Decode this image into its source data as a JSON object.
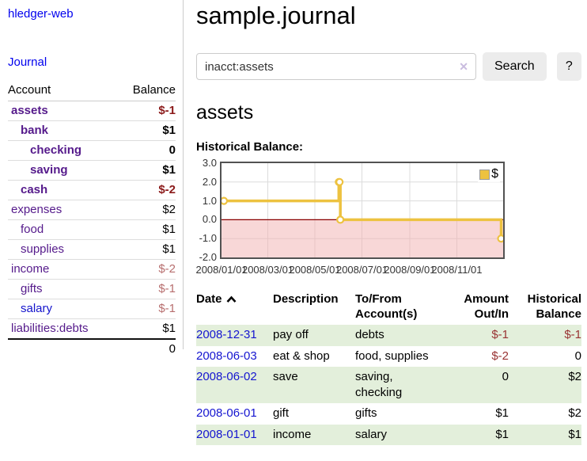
{
  "colors": {
    "accent_purple": "#551a8b",
    "link_blue": "#1414cc",
    "date_link_blue": "#1515d0",
    "negative_strong": "#8b1a1a",
    "negative_soft": "#b76e6e",
    "table_negative": "#993333",
    "row_highlight": "#e3efdb",
    "chart_line_gold": "#edc240",
    "chart_negative_area": "#f2b0b0",
    "chart_zero_line": "#8b0000"
  },
  "sidebar": {
    "app_title": "hledger-web",
    "journal_link": "Journal",
    "accounts": {
      "headers": {
        "account": "Account",
        "balance": "Balance"
      },
      "rows": [
        {
          "account": "assets",
          "balance": "$-1",
          "indent": 0,
          "bold": true,
          "balance_style": "neg-strong"
        },
        {
          "account": "bank",
          "balance": "$1",
          "indent": 1,
          "bold": true,
          "balance_style": "pos"
        },
        {
          "account": "checking",
          "balance": "0",
          "indent": 2,
          "bold": true,
          "balance_style": "pos"
        },
        {
          "account": "saving",
          "balance": "$1",
          "indent": 2,
          "bold": true,
          "balance_style": "pos"
        },
        {
          "account": "cash",
          "balance": "$-2",
          "indent": 1,
          "bold": true,
          "balance_style": "neg-strong"
        },
        {
          "account": "expenses",
          "balance": "$2",
          "indent": 0,
          "bold": false,
          "balance_style": "pos"
        },
        {
          "account": "food",
          "balance": "$1",
          "indent": 1,
          "bold": false,
          "balance_style": "pos"
        },
        {
          "account": "supplies",
          "balance": "$1",
          "indent": 1,
          "bold": false,
          "balance_style": "pos"
        },
        {
          "account": "income",
          "balance": "$-2",
          "indent": 0,
          "bold": false,
          "balance_style": "neg-soft"
        },
        {
          "account": "gifts",
          "balance": "$-1",
          "indent": 1,
          "bold": false,
          "balance_style": "neg-soft"
        },
        {
          "account": "salary",
          "balance": "$-1",
          "indent": 1,
          "bold": false,
          "balance_style": "neg-soft",
          "link_color": "blue"
        },
        {
          "account": "liabilities:debts",
          "balance": "$1",
          "indent": 0,
          "bold": false,
          "balance_style": "pos"
        }
      ],
      "total": "0"
    }
  },
  "main": {
    "title": "sample.journal",
    "search": {
      "value": "inacct:assets",
      "clear_icon": "✕",
      "button_label": "Search",
      "help_label": "?"
    },
    "account_heading": "assets",
    "chart_heading": "Historical Balance:"
  },
  "chart_data": {
    "type": "line",
    "step": true,
    "title": "Historical Balance:",
    "series": [
      {
        "name": "$",
        "color": "#edc240",
        "points": [
          {
            "date": "2008-01-01",
            "value": 1
          },
          {
            "date": "2008-06-01",
            "value": 2
          },
          {
            "date": "2008-06-02",
            "value": 2
          },
          {
            "date": "2008-06-03",
            "value": 0
          },
          {
            "date": "2008-12-31",
            "value": -1
          }
        ]
      }
    ],
    "x_range": [
      "2008-01-01",
      "2008-12-31"
    ],
    "ylim": [
      -2.0,
      3.0
    ],
    "yticks": [
      "3.0",
      "2.0",
      "1.0",
      "0.0",
      "-1.0",
      "-2.0"
    ],
    "xticks": [
      "2008/01/01",
      "2008/03/01",
      "2008/05/01",
      "2008/07/01",
      "2008/09/01",
      "2008/11/01"
    ],
    "legend": {
      "position": "top-right",
      "label": "$"
    },
    "grid": true
  },
  "transactions": {
    "headers": [
      {
        "label": "Date"
      },
      {
        "label": "Description"
      },
      {
        "label": "To/From\nAccount(s)"
      },
      {
        "label": "Amount\nOut/In"
      },
      {
        "label": "Historical\nBalance"
      }
    ],
    "rows": [
      {
        "date": "2008-12-31",
        "description": "pay off",
        "accounts": "debts",
        "amount": "$-1",
        "amount_negative": true,
        "balance": "$-1",
        "balance_negative": true,
        "highlighted": true
      },
      {
        "date": "2008-06-03",
        "description": "eat & shop",
        "accounts": "food, supplies",
        "amount": "$-2",
        "amount_negative": true,
        "balance": "0",
        "balance_negative": false,
        "highlighted": false
      },
      {
        "date": "2008-06-02",
        "description": "save",
        "accounts": "saving, checking",
        "amount": "0",
        "amount_negative": false,
        "balance": "$2",
        "balance_negative": false,
        "highlighted": true
      },
      {
        "date": "2008-06-01",
        "description": "gift",
        "accounts": "gifts",
        "amount": "$1",
        "amount_negative": false,
        "balance": "$2",
        "balance_negative": false,
        "highlighted": false
      },
      {
        "date": "2008-01-01",
        "description": "income",
        "accounts": "salary",
        "amount": "$1",
        "amount_negative": false,
        "balance": "$1",
        "balance_negative": false,
        "highlighted": true
      }
    ]
  }
}
